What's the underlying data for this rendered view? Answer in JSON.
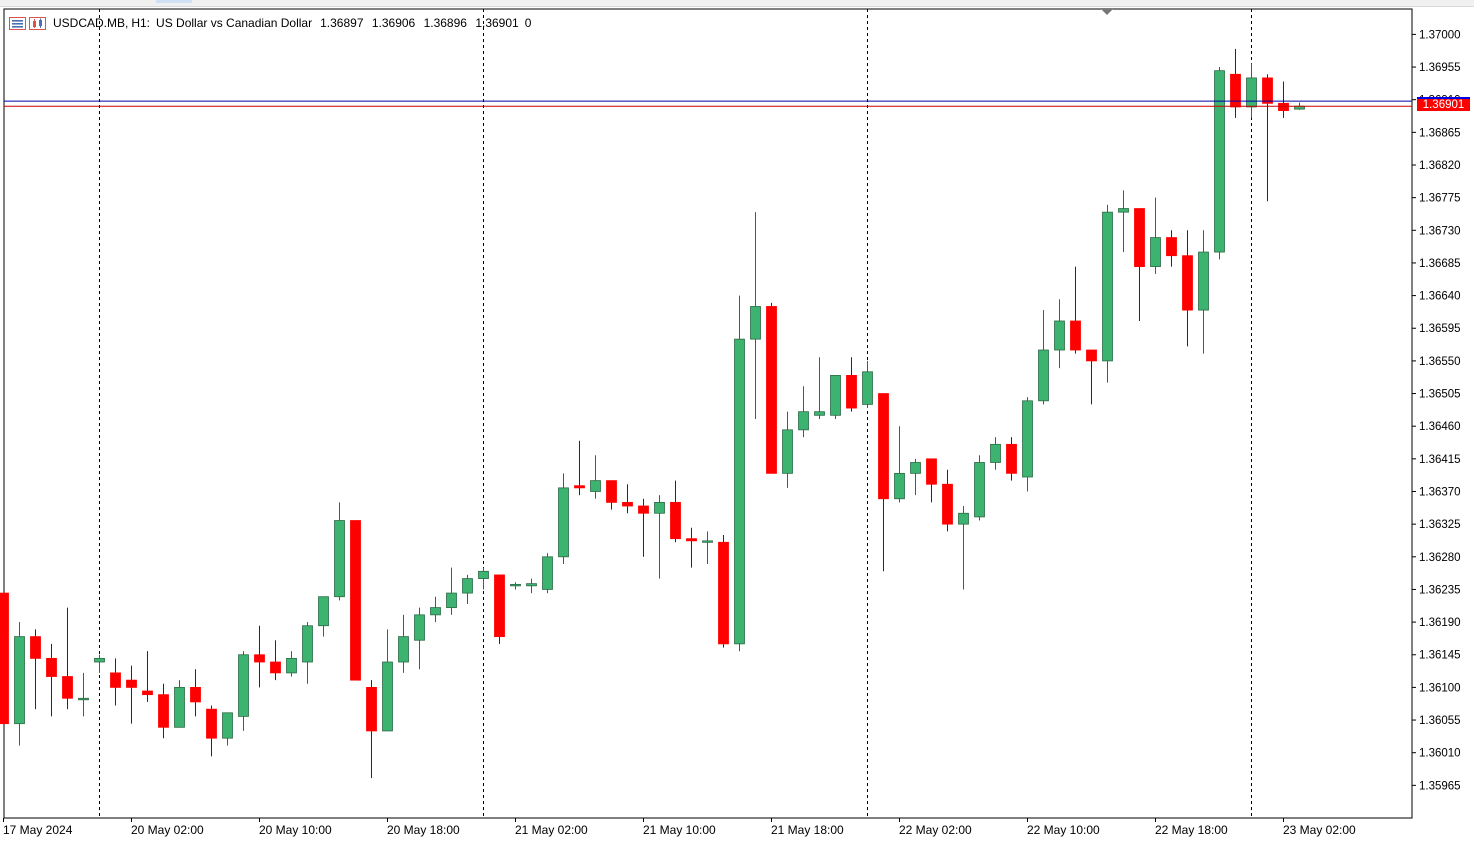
{
  "header": {
    "symbol": "USDCAD.MB,",
    "timeframe": "H1:",
    "description": "US Dollar vs Canadian Dollar",
    "open": "1.36897",
    "high": "1.36906",
    "low": "1.36896",
    "close": "1.36901",
    "volume": "0",
    "icons": [
      "bars-menu-icon",
      "chart-type-icon"
    ]
  },
  "price_badge": {
    "bid_label": "1.36901",
    "ask_color": "#0000e6",
    "bid_color": "#ff0000"
  },
  "colors": {
    "bull": "#3cb371",
    "bear": "#ff0000",
    "grid": "#000000",
    "ask_line": "#0000aa",
    "bid_line": "#cc0000"
  },
  "chart_data": {
    "type": "candlestick",
    "timeframe": "H1",
    "ylim": [
      1.3592,
      1.37035
    ],
    "yticks": [
      "1.37000",
      "1.36955",
      "1.36910",
      "1.36865",
      "1.36820",
      "1.36775",
      "1.36730",
      "1.36685",
      "1.36640",
      "1.36595",
      "1.36550",
      "1.36505",
      "1.36460",
      "1.36415",
      "1.36370",
      "1.36325",
      "1.36280",
      "1.36235",
      "1.36190",
      "1.36145",
      "1.36100",
      "1.36055",
      "1.36010",
      "1.35965"
    ],
    "xticks": [
      "17 May 2024",
      "20 May 02:00",
      "20 May 10:00",
      "20 May 18:00",
      "21 May 02:00",
      "21 May 10:00",
      "21 May 18:00",
      "22 May 02:00",
      "22 May 10:00",
      "22 May 18:00",
      "23 May 02:00"
    ],
    "ask": 1.36908,
    "bid": 1.36901,
    "candles": [
      {
        "o": 1.3623,
        "h": 1.3623,
        "l": 1.3605,
        "c": 1.3605
      },
      {
        "o": 1.3605,
        "h": 1.3619,
        "l": 1.3602,
        "c": 1.3617
      },
      {
        "o": 1.3617,
        "h": 1.3618,
        "l": 1.3607,
        "c": 1.3614
      },
      {
        "o": 1.3614,
        "h": 1.3616,
        "l": 1.3606,
        "c": 1.36115
      },
      {
        "o": 1.36115,
        "h": 1.3621,
        "l": 1.3607,
        "c": 1.36085
      },
      {
        "o": 1.36085,
        "h": 1.3612,
        "l": 1.3606,
        "c": 1.36085
      },
      {
        "o": 1.36135,
        "h": 1.36145,
        "l": 1.3612,
        "c": 1.3614
      },
      {
        "o": 1.3612,
        "h": 1.3614,
        "l": 1.36075,
        "c": 1.361
      },
      {
        "o": 1.3611,
        "h": 1.3613,
        "l": 1.3605,
        "c": 1.361
      },
      {
        "o": 1.36095,
        "h": 1.3615,
        "l": 1.3608,
        "c": 1.3609
      },
      {
        "o": 1.3609,
        "h": 1.36105,
        "l": 1.3603,
        "c": 1.36045
      },
      {
        "o": 1.36045,
        "h": 1.3611,
        "l": 1.36045,
        "c": 1.361
      },
      {
        "o": 1.361,
        "h": 1.36125,
        "l": 1.3606,
        "c": 1.3608
      },
      {
        "o": 1.3607,
        "h": 1.36075,
        "l": 1.36005,
        "c": 1.3603
      },
      {
        "o": 1.3603,
        "h": 1.36065,
        "l": 1.3602,
        "c": 1.36065
      },
      {
        "o": 1.3606,
        "h": 1.3615,
        "l": 1.3604,
        "c": 1.36145
      },
      {
        "o": 1.36145,
        "h": 1.36185,
        "l": 1.361,
        "c": 1.36135
      },
      {
        "o": 1.36135,
        "h": 1.36165,
        "l": 1.3611,
        "c": 1.3612
      },
      {
        "o": 1.3612,
        "h": 1.3615,
        "l": 1.36115,
        "c": 1.3614
      },
      {
        "o": 1.36135,
        "h": 1.3619,
        "l": 1.36105,
        "c": 1.36185
      },
      {
        "o": 1.36185,
        "h": 1.36225,
        "l": 1.3617,
        "c": 1.36225
      },
      {
        "o": 1.36225,
        "h": 1.36355,
        "l": 1.3622,
        "c": 1.3633
      },
      {
        "o": 1.3633,
        "h": 1.3633,
        "l": 1.3611,
        "c": 1.3611
      },
      {
        "o": 1.361,
        "h": 1.3611,
        "l": 1.35975,
        "c": 1.3604
      },
      {
        "o": 1.3604,
        "h": 1.3618,
        "l": 1.3604,
        "c": 1.36135
      },
      {
        "o": 1.36135,
        "h": 1.362,
        "l": 1.3612,
        "c": 1.3617
      },
      {
        "o": 1.36165,
        "h": 1.3621,
        "l": 1.36125,
        "c": 1.362
      },
      {
        "o": 1.362,
        "h": 1.36225,
        "l": 1.3619,
        "c": 1.3621
      },
      {
        "o": 1.3621,
        "h": 1.36265,
        "l": 1.362,
        "c": 1.3623
      },
      {
        "o": 1.3623,
        "h": 1.36255,
        "l": 1.36215,
        "c": 1.3625
      },
      {
        "o": 1.3625,
        "h": 1.36265,
        "l": 1.36235,
        "c": 1.3626
      },
      {
        "o": 1.36255,
        "h": 1.36255,
        "l": 1.3616,
        "c": 1.3617
      },
      {
        "o": 1.3624,
        "h": 1.36245,
        "l": 1.36235,
        "c": 1.36242
      },
      {
        "o": 1.3624,
        "h": 1.3625,
        "l": 1.3623,
        "c": 1.36243
      },
      {
        "o": 1.36235,
        "h": 1.36285,
        "l": 1.3623,
        "c": 1.3628
      },
      {
        "o": 1.3628,
        "h": 1.36395,
        "l": 1.3627,
        "c": 1.36375
      },
      {
        "o": 1.36378,
        "h": 1.3644,
        "l": 1.36365,
        "c": 1.36375
      },
      {
        "o": 1.3637,
        "h": 1.3642,
        "l": 1.3636,
        "c": 1.36385
      },
      {
        "o": 1.36385,
        "h": 1.36385,
        "l": 1.36345,
        "c": 1.36355
      },
      {
        "o": 1.36355,
        "h": 1.3638,
        "l": 1.3634,
        "c": 1.3635
      },
      {
        "o": 1.3635,
        "h": 1.3636,
        "l": 1.3628,
        "c": 1.3634
      },
      {
        "o": 1.3634,
        "h": 1.36365,
        "l": 1.3625,
        "c": 1.36355
      },
      {
        "o": 1.36355,
        "h": 1.36385,
        "l": 1.363,
        "c": 1.36305
      },
      {
        "o": 1.36305,
        "h": 1.3632,
        "l": 1.36265,
        "c": 1.36302
      },
      {
        "o": 1.363,
        "h": 1.36315,
        "l": 1.3627,
        "c": 1.36302
      },
      {
        "o": 1.363,
        "h": 1.3631,
        "l": 1.36155,
        "c": 1.3616
      },
      {
        "o": 1.3616,
        "h": 1.3664,
        "l": 1.3615,
        "c": 1.3658
      },
      {
        "o": 1.3658,
        "h": 1.36755,
        "l": 1.3647,
        "c": 1.36625
      },
      {
        "o": 1.36625,
        "h": 1.3663,
        "l": 1.36395,
        "c": 1.36395
      },
      {
        "o": 1.36395,
        "h": 1.3648,
        "l": 1.36375,
        "c": 1.36455
      },
      {
        "o": 1.36455,
        "h": 1.36515,
        "l": 1.36445,
        "c": 1.3648
      },
      {
        "o": 1.36475,
        "h": 1.36555,
        "l": 1.3647,
        "c": 1.3648
      },
      {
        "o": 1.36475,
        "h": 1.3653,
        "l": 1.3647,
        "c": 1.3653
      },
      {
        "o": 1.3653,
        "h": 1.36555,
        "l": 1.3648,
        "c": 1.36485
      },
      {
        "o": 1.3649,
        "h": 1.3655,
        "l": 1.36485,
        "c": 1.36535
      },
      {
        "o": 1.36505,
        "h": 1.36505,
        "l": 1.3626,
        "c": 1.3636
      },
      {
        "o": 1.3636,
        "h": 1.3646,
        "l": 1.36355,
        "c": 1.36395
      },
      {
        "o": 1.36395,
        "h": 1.36415,
        "l": 1.36365,
        "c": 1.3641
      },
      {
        "o": 1.36415,
        "h": 1.36415,
        "l": 1.36355,
        "c": 1.3638
      },
      {
        "o": 1.3638,
        "h": 1.364,
        "l": 1.36315,
        "c": 1.36325
      },
      {
        "o": 1.36325,
        "h": 1.3635,
        "l": 1.36235,
        "c": 1.3634
      },
      {
        "o": 1.36335,
        "h": 1.3642,
        "l": 1.3633,
        "c": 1.3641
      },
      {
        "o": 1.3641,
        "h": 1.36445,
        "l": 1.364,
        "c": 1.36435
      },
      {
        "o": 1.36435,
        "h": 1.36445,
        "l": 1.36385,
        "c": 1.36395
      },
      {
        "o": 1.3639,
        "h": 1.365,
        "l": 1.3637,
        "c": 1.36495
      },
      {
        "o": 1.36495,
        "h": 1.3662,
        "l": 1.3649,
        "c": 1.36565
      },
      {
        "o": 1.36565,
        "h": 1.36635,
        "l": 1.3654,
        "c": 1.36605
      },
      {
        "o": 1.36605,
        "h": 1.3668,
        "l": 1.3656,
        "c": 1.36565
      },
      {
        "o": 1.36565,
        "h": 1.36565,
        "l": 1.3649,
        "c": 1.3655
      },
      {
        "o": 1.3655,
        "h": 1.36765,
        "l": 1.3652,
        "c": 1.36755
      },
      {
        "o": 1.36755,
        "h": 1.36785,
        "l": 1.367,
        "c": 1.3676
      },
      {
        "o": 1.3676,
        "h": 1.3676,
        "l": 1.36605,
        "c": 1.3668
      },
      {
        "o": 1.3668,
        "h": 1.36775,
        "l": 1.3667,
        "c": 1.3672
      },
      {
        "o": 1.3672,
        "h": 1.3673,
        "l": 1.3668,
        "c": 1.36695
      },
      {
        "o": 1.36695,
        "h": 1.3673,
        "l": 1.3657,
        "c": 1.3662
      },
      {
        "o": 1.3662,
        "h": 1.3673,
        "l": 1.3656,
        "c": 1.367
      },
      {
        "o": 1.367,
        "h": 1.36955,
        "l": 1.3669,
        "c": 1.3695
      },
      {
        "o": 1.36945,
        "h": 1.3698,
        "l": 1.36885,
        "c": 1.369
      },
      {
        "o": 1.369,
        "h": 1.3696,
        "l": 1.36885,
        "c": 1.3694
      },
      {
        "o": 1.3694,
        "h": 1.36945,
        "l": 1.3677,
        "c": 1.36905
      },
      {
        "o": 1.36905,
        "h": 1.36935,
        "l": 1.36885,
        "c": 1.36895
      },
      {
        "o": 1.36897,
        "h": 1.36906,
        "l": 1.36896,
        "c": 1.36901
      }
    ]
  }
}
